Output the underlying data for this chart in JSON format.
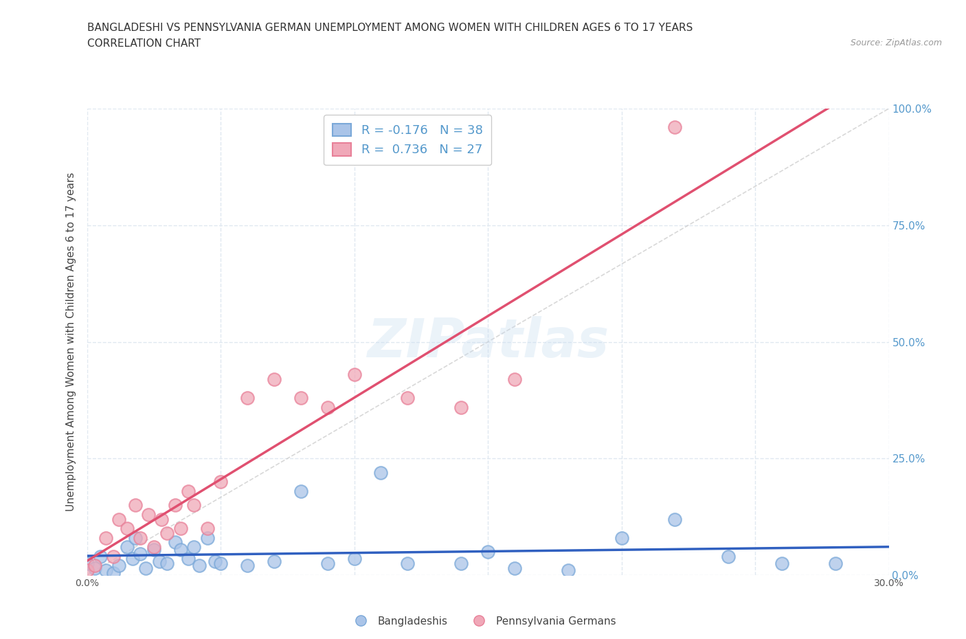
{
  "title_line1": "BANGLADESHI VS PENNSYLVANIA GERMAN UNEMPLOYMENT AMONG WOMEN WITH CHILDREN AGES 6 TO 17 YEARS",
  "title_line2": "CORRELATION CHART",
  "source_text": "Source: ZipAtlas.com",
  "ylabel": "Unemployment Among Women with Children Ages 6 to 17 years",
  "watermark": "ZIPatlas",
  "xlim": [
    0,
    0.3
  ],
  "ylim": [
    0,
    1.0
  ],
  "xticks": [
    0.0,
    0.05,
    0.1,
    0.15,
    0.2,
    0.25,
    0.3
  ],
  "yticks": [
    0.0,
    0.25,
    0.5,
    0.75,
    1.0
  ],
  "ytick_labels_right": [
    "0.0%",
    "25.0%",
    "50.0%",
    "75.0%",
    "100.0%"
  ],
  "xtick_labels_show": [
    "0.0%",
    "",
    "",
    "",
    "",
    "",
    "30.0%"
  ],
  "blue_R": -0.176,
  "blue_N": 38,
  "pink_R": 0.736,
  "pink_N": 27,
  "blue_color": "#aac4e8",
  "pink_color": "#f0a8b8",
  "blue_edge_color": "#7aa8d8",
  "pink_edge_color": "#e88098",
  "blue_line_color": "#3060c0",
  "pink_line_color": "#e05070",
  "diagonal_color": "#c8c8c8",
  "legend_label_blue": "Bangladeshis",
  "legend_label_pink": "Pennsylvania Germans",
  "blue_scatter_x": [
    0.0,
    0.003,
    0.005,
    0.007,
    0.01,
    0.012,
    0.015,
    0.017,
    0.018,
    0.02,
    0.022,
    0.025,
    0.027,
    0.03,
    0.033,
    0.035,
    0.038,
    0.04,
    0.042,
    0.045,
    0.048,
    0.05,
    0.06,
    0.07,
    0.08,
    0.09,
    0.1,
    0.11,
    0.12,
    0.14,
    0.15,
    0.16,
    0.18,
    0.2,
    0.22,
    0.24,
    0.26,
    0.28
  ],
  "blue_scatter_y": [
    0.025,
    0.015,
    0.04,
    0.01,
    0.005,
    0.02,
    0.06,
    0.035,
    0.08,
    0.045,
    0.015,
    0.055,
    0.03,
    0.025,
    0.07,
    0.055,
    0.035,
    0.06,
    0.02,
    0.08,
    0.03,
    0.025,
    0.02,
    0.03,
    0.18,
    0.025,
    0.035,
    0.22,
    0.025,
    0.025,
    0.05,
    0.015,
    0.01,
    0.08,
    0.12,
    0.04,
    0.025,
    0.025
  ],
  "pink_scatter_x": [
    0.0,
    0.003,
    0.007,
    0.01,
    0.012,
    0.015,
    0.018,
    0.02,
    0.023,
    0.025,
    0.028,
    0.03,
    0.033,
    0.035,
    0.038,
    0.04,
    0.045,
    0.05,
    0.06,
    0.07,
    0.08,
    0.09,
    0.1,
    0.12,
    0.14,
    0.16,
    0.22
  ],
  "pink_scatter_y": [
    0.01,
    0.02,
    0.08,
    0.04,
    0.12,
    0.1,
    0.15,
    0.08,
    0.13,
    0.06,
    0.12,
    0.09,
    0.15,
    0.1,
    0.18,
    0.15,
    0.1,
    0.2,
    0.38,
    0.42,
    0.38,
    0.36,
    0.43,
    0.38,
    0.36,
    0.42,
    0.96
  ],
  "background_color": "#ffffff",
  "title_fontsize": 11,
  "axis_label_fontsize": 11,
  "right_axis_color": "#5599cc",
  "grid_color": "#e0e8f0",
  "grid_style": "--"
}
